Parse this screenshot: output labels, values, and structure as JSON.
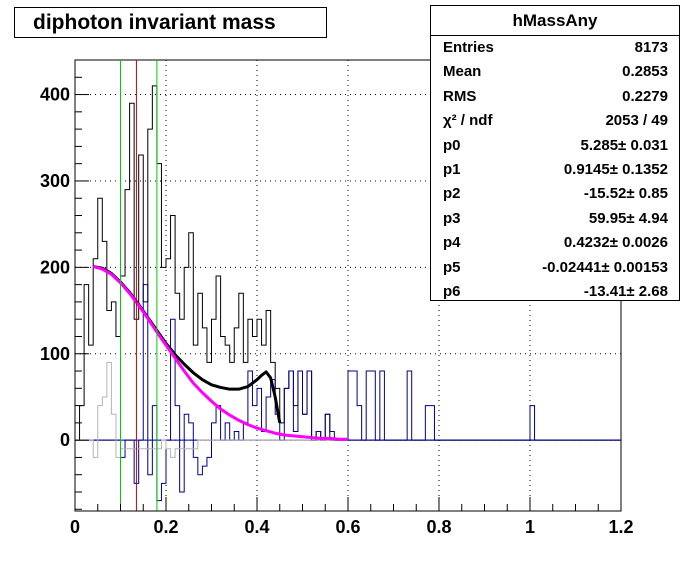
{
  "chart_data": {
    "type": "histogram",
    "title": "diphoton invariant mass",
    "xlabel": "",
    "ylabel": "",
    "xlim": [
      0,
      1.2
    ],
    "ylim": [
      -82,
      440
    ],
    "x_ticks": [
      "0",
      "0.2",
      "0.4",
      "0.6",
      "0.8",
      "1",
      "1.2"
    ],
    "y_ticks": [
      "0",
      "100",
      "200",
      "300",
      "400"
    ],
    "grid": true,
    "colors": {
      "data": "#000000",
      "background_subtracted": "#00008b",
      "background_hist": "#b4b4b4",
      "fit_total": "#000000",
      "fit_background": "#ff00ff",
      "mass_line": "#cc0000",
      "window_lines": "#00cc00"
    },
    "vertical_lines": [
      {
        "x": 0.1,
        "color": "#00cc00"
      },
      {
        "x": 0.135,
        "color": "#cc0000"
      },
      {
        "x": 0.18,
        "color": "#00cc00"
      }
    ],
    "series": [
      {
        "style": "histogram",
        "x_start": 0.0,
        "bin_width": 0.01,
        "values": [
          0,
          40,
          180,
          110,
          210,
          280,
          230,
          150,
          160,
          120,
          190,
          290,
          390,
          140,
          330,
          160,
          360,
          410,
          320,
          200,
          210,
          260,
          170,
          140,
          200,
          240,
          110,
          170,
          130,
          90,
          140,
          190,
          120,
          110,
          90,
          130,
          170,
          90,
          140,
          120,
          140,
          110,
          150,
          90,
          60,
          20,
          60,
          80,
          40,
          80,
          30,
          80,
          0,
          10,
          0,
          30,
          0,
          0,
          0,
          0,
          0,
          0,
          0,
          0,
          0,
          0,
          0,
          0,
          0,
          0,
          0,
          0,
          0,
          0,
          0,
          0,
          0,
          0,
          0,
          0,
          0,
          0,
          0,
          0,
          0,
          0,
          0,
          0,
          0,
          0,
          0,
          0,
          0,
          0,
          0,
          0,
          0,
          0,
          0,
          0,
          0,
          0,
          0,
          0,
          0,
          0,
          0,
          0,
          0,
          0,
          0,
          0,
          0,
          0,
          0,
          0,
          0,
          0,
          0,
          0
        ],
        "color": "#000000"
      },
      {
        "style": "histogram",
        "x_start": 0.0,
        "bin_width": 0.01,
        "values": [
          0,
          0,
          0,
          0,
          0,
          0,
          0,
          0,
          0,
          0,
          -20,
          0,
          0,
          -50,
          0,
          180,
          -40,
          40,
          -70,
          -50,
          0,
          140,
          40,
          -60,
          30,
          20,
          -20,
          -40,
          -30,
          -20,
          20,
          40,
          0,
          20,
          0,
          10,
          0,
          20,
          80,
          40,
          60,
          10,
          50,
          70,
          30,
          0,
          60,
          80,
          10,
          80,
          30,
          80,
          0,
          10,
          0,
          30,
          10,
          0,
          0,
          0,
          80,
          80,
          40,
          0,
          80,
          80,
          0,
          80,
          0,
          0,
          0,
          0,
          0,
          80,
          0,
          0,
          0,
          40,
          40,
          0,
          0,
          0,
          0,
          0,
          0,
          0,
          0,
          0,
          0,
          0,
          0,
          0,
          0,
          0,
          0,
          0,
          0,
          0,
          0,
          0,
          40,
          0,
          0,
          0,
          0,
          0,
          0,
          0,
          0,
          0,
          0,
          0,
          0,
          0,
          0,
          0,
          0,
          0,
          0,
          0
        ],
        "color": "#00008b"
      },
      {
        "style": "histogram",
        "x_start": 0.0,
        "bin_width": 0.01,
        "values": [
          0,
          0,
          0,
          0,
          0,
          0,
          0,
          0,
          0,
          0,
          0,
          0,
          0,
          0,
          0,
          0,
          0,
          0,
          0,
          0,
          0,
          0,
          0,
          0,
          0,
          0,
          0,
          0,
          0,
          0,
          0,
          0,
          0,
          0,
          0,
          0,
          0,
          0,
          0,
          0,
          0,
          0,
          0,
          0,
          0,
          0,
          0,
          0,
          0,
          0,
          0,
          0,
          0,
          0,
          0,
          0,
          0,
          0,
          0,
          0,
          0,
          0,
          0,
          0,
          0,
          0,
          0,
          0,
          0,
          0,
          0,
          0,
          0,
          0,
          0,
          0,
          0,
          0,
          0,
          0,
          0,
          0,
          0,
          0,
          0,
          0,
          0,
          0,
          0,
          0,
          0,
          0,
          0,
          0,
          0,
          0,
          0,
          0,
          0,
          0,
          0,
          0,
          0,
          0,
          0,
          0,
          0,
          0,
          0,
          0,
          0,
          0,
          0,
          0,
          0,
          0,
          0,
          0,
          0,
          0
        ],
        "color": "#00008b"
      },
      {
        "style": "histogram",
        "x_start": 0.0,
        "bin_width": 0.01,
        "values": [
          0,
          0,
          0,
          0,
          -20,
          40,
          50,
          90,
          30,
          -20,
          -10,
          -10,
          -10,
          -10,
          -10,
          -10,
          -10,
          -10,
          -10,
          0,
          -10,
          -20,
          -10,
          -10,
          -10,
          -10,
          -10,
          0,
          0,
          0,
          0,
          0,
          0,
          0,
          0,
          0,
          0,
          0,
          0,
          0,
          0,
          0,
          0,
          0,
          0,
          0,
          0,
          0,
          0,
          0,
          0,
          0,
          0,
          0,
          0,
          0,
          0,
          0,
          0,
          0
        ],
        "color": "#b4b4b4"
      },
      {
        "style": "curve",
        "color": "#000000",
        "x": [
          0.04,
          0.06,
          0.08,
          0.1,
          0.12,
          0.14,
          0.16,
          0.18,
          0.2,
          0.22,
          0.24,
          0.26,
          0.28,
          0.3,
          0.32,
          0.34,
          0.36,
          0.38,
          0.4,
          0.41,
          0.42,
          0.43,
          0.44,
          0.45
        ],
        "y": [
          201,
          199,
          193,
          183,
          171,
          157,
          142,
          127,
          112,
          99,
          88,
          78,
          70,
          64,
          61,
          59,
          59,
          62,
          70,
          75,
          79,
          72,
          50,
          20
        ]
      },
      {
        "style": "curve",
        "color": "#ff00ff",
        "x": [
          0.04,
          0.06,
          0.08,
          0.1,
          0.12,
          0.14,
          0.16,
          0.18,
          0.2,
          0.22,
          0.24,
          0.26,
          0.28,
          0.3,
          0.32,
          0.34,
          0.36,
          0.38,
          0.4,
          0.42,
          0.44,
          0.46,
          0.48,
          0.5,
          0.52,
          0.54,
          0.56,
          0.58,
          0.6
        ],
        "y": [
          201,
          198,
          192,
          182,
          170,
          156,
          141,
          125,
          110,
          95,
          80,
          66,
          55,
          45,
          36,
          29,
          23,
          18,
          14,
          11,
          8,
          6,
          5,
          4,
          3,
          2,
          2,
          1,
          1
        ]
      }
    ],
    "legend": "top-right"
  },
  "stats_box": {
    "title": "hMassAny",
    "rows": [
      {
        "label": "Entries",
        "value": "8173"
      },
      {
        "label": "Mean",
        "value": "0.2853"
      },
      {
        "label": "RMS",
        "value": "0.2279"
      },
      {
        "label": "χ² / ndf",
        "value": "2053 / 49"
      },
      {
        "label": "p0",
        "value": "5.285± 0.031"
      },
      {
        "label": "p1",
        "value": "0.9145± 0.1352"
      },
      {
        "label": "p2",
        "value": "-15.52± 0.85"
      },
      {
        "label": "p3",
        "value": "59.95± 4.94"
      },
      {
        "label": "p4",
        "value": "0.4232± 0.0026"
      },
      {
        "label": "p5",
        "value": "-0.02441± 0.00153"
      },
      {
        "label": "p6",
        "value": "-13.41± 2.68"
      }
    ]
  }
}
